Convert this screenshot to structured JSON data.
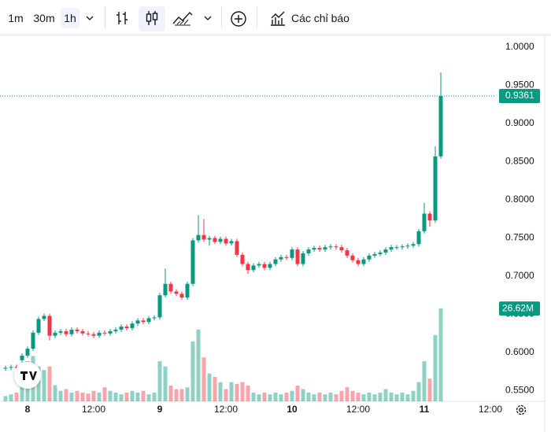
{
  "toolbar": {
    "intervals": [
      "1m",
      "30m",
      "1h"
    ],
    "indicators": "Các chỉ báo"
  },
  "chart_data": {
    "type": "candlestick",
    "x": [
      -4,
      -3,
      -2,
      -1,
      0,
      1,
      2,
      3,
      4,
      5,
      6,
      7,
      8,
      9,
      10,
      11,
      12,
      13,
      14,
      15,
      16,
      17,
      18,
      19,
      20,
      21,
      22,
      23,
      24,
      25,
      26,
      27,
      28,
      29,
      30,
      31,
      32,
      33,
      34,
      35,
      36,
      37,
      38,
      39,
      40,
      41,
      42,
      43,
      44,
      45,
      46,
      47,
      48,
      49,
      50,
      51,
      52,
      53,
      54,
      55,
      56,
      57,
      58,
      59,
      60,
      61,
      62,
      63,
      64,
      65,
      66,
      67,
      68,
      69,
      70,
      71,
      72,
      73,
      74,
      75
    ],
    "open": [
      0.579,
      0.58,
      0.581,
      0.59,
      0.596,
      0.605,
      0.626,
      0.644,
      0.648,
      0.622,
      0.626,
      0.628,
      0.624,
      0.63,
      0.628,
      0.625,
      0.624,
      0.622,
      0.626,
      0.625,
      0.628,
      0.63,
      0.634,
      0.632,
      0.638,
      0.642,
      0.64,
      0.645,
      0.646,
      0.675,
      0.69,
      0.68,
      0.677,
      0.672,
      0.69,
      0.747,
      0.754,
      0.748,
      0.75,
      0.745,
      0.749,
      0.743,
      0.746,
      0.728,
      0.716,
      0.708,
      0.714,
      0.716,
      0.711,
      0.716,
      0.722,
      0.725,
      0.724,
      0.735,
      0.716,
      0.73,
      0.735,
      0.737,
      0.735,
      0.738,
      0.739,
      0.738,
      0.734,
      0.727,
      0.721,
      0.716,
      0.722,
      0.727,
      0.729,
      0.731,
      0.735,
      0.738,
      0.738,
      0.739,
      0.74,
      0.742,
      0.759,
      0.782,
      0.773,
      0.857
    ],
    "high": [
      0.583,
      0.584,
      0.584,
      0.599,
      0.608,
      0.629,
      0.647,
      0.651,
      0.651,
      0.629,
      0.631,
      0.631,
      0.633,
      0.633,
      0.631,
      0.628,
      0.627,
      0.629,
      0.629,
      0.631,
      0.633,
      0.637,
      0.637,
      0.641,
      0.645,
      0.645,
      0.648,
      0.649,
      0.678,
      0.71,
      0.693,
      0.683,
      0.68,
      0.693,
      0.75,
      0.78,
      0.775,
      0.753,
      0.753,
      0.752,
      0.752,
      0.749,
      0.749,
      0.731,
      0.719,
      0.717,
      0.719,
      0.719,
      0.719,
      0.725,
      0.728,
      0.728,
      0.738,
      0.738,
      0.733,
      0.738,
      0.74,
      0.74,
      0.741,
      0.742,
      0.742,
      0.741,
      0.737,
      0.73,
      0.724,
      0.725,
      0.73,
      0.732,
      0.734,
      0.738,
      0.741,
      0.741,
      0.742,
      0.743,
      0.745,
      0.762,
      0.796,
      0.785,
      0.87,
      0.967
    ],
    "low": [
      0.576,
      0.577,
      0.577,
      0.587,
      0.593,
      0.602,
      0.623,
      0.641,
      0.616,
      0.619,
      0.623,
      0.621,
      0.621,
      0.625,
      0.622,
      0.621,
      0.619,
      0.619,
      0.622,
      0.622,
      0.625,
      0.627,
      0.629,
      0.629,
      0.635,
      0.637,
      0.637,
      0.642,
      0.643,
      0.672,
      0.677,
      0.674,
      0.669,
      0.669,
      0.687,
      0.744,
      0.745,
      0.74,
      0.742,
      0.742,
      0.74,
      0.74,
      0.725,
      0.713,
      0.703,
      0.705,
      0.711,
      0.708,
      0.708,
      0.713,
      0.719,
      0.721,
      0.721,
      0.713,
      0.713,
      0.727,
      0.732,
      0.732,
      0.732,
      0.735,
      0.735,
      0.731,
      0.724,
      0.718,
      0.713,
      0.713,
      0.719,
      0.724,
      0.726,
      0.728,
      0.732,
      0.735,
      0.735,
      0.736,
      0.737,
      0.739,
      0.756,
      0.765,
      0.77,
      0.854
    ],
    "close": [
      0.58,
      0.581,
      0.58,
      0.596,
      0.605,
      0.626,
      0.644,
      0.648,
      0.622,
      0.626,
      0.628,
      0.624,
      0.63,
      0.628,
      0.625,
      0.624,
      0.622,
      0.626,
      0.625,
      0.628,
      0.63,
      0.634,
      0.632,
      0.638,
      0.642,
      0.64,
      0.645,
      0.646,
      0.675,
      0.69,
      0.68,
      0.677,
      0.672,
      0.69,
      0.747,
      0.754,
      0.748,
      0.75,
      0.745,
      0.749,
      0.743,
      0.746,
      0.728,
      0.716,
      0.708,
      0.714,
      0.716,
      0.711,
      0.716,
      0.722,
      0.725,
      0.724,
      0.735,
      0.716,
      0.73,
      0.735,
      0.737,
      0.735,
      0.738,
      0.739,
      0.738,
      0.734,
      0.727,
      0.721,
      0.716,
      0.722,
      0.727,
      0.729,
      0.731,
      0.735,
      0.738,
      0.738,
      0.739,
      0.74,
      0.742,
      0.759,
      0.782,
      0.773,
      0.857,
      0.9361
    ],
    "last_price_label": "0.9361",
    "volume": [
      1.5,
      2,
      2.5,
      8,
      11.5,
      13,
      10,
      9,
      10,
      4.6,
      3,
      3.5,
      2.5,
      3,
      2.5,
      2.2,
      3,
      2.5,
      4,
      3,
      2.5,
      2,
      2.5,
      3,
      2.5,
      3,
      2,
      2.5,
      11.5,
      10,
      4.5,
      3.5,
      3.5,
      4,
      17.2,
      20.6,
      12.6,
      8,
      7,
      5.5,
      3.5,
      5.5,
      5,
      5.5,
      4.5,
      2.5,
      2,
      2.5,
      2,
      2.5,
      2,
      2.5,
      3,
      4.5,
      3.5,
      2.5,
      2,
      2.5,
      2,
      2.5,
      2,
      3,
      4,
      3,
      2.5,
      2,
      2.5,
      2,
      2.5,
      3.5,
      2.5,
      2,
      2.5,
      2,
      3,
      5.5,
      11.5,
      6.5,
      19,
      26.62
    ],
    "last_volume_label": "26.62M",
    "volume_ylim": [
      0,
      105
    ],
    "xlim": [
      -5,
      85
    ],
    "xticks": [
      {
        "value": 0,
        "label": "8"
      },
      {
        "value": 12,
        "label": "12:00"
      },
      {
        "value": 24,
        "label": "9"
      },
      {
        "value": 36,
        "label": "12:00"
      },
      {
        "value": 48,
        "label": "10"
      },
      {
        "value": 60,
        "label": "12:00"
      },
      {
        "value": 72,
        "label": "11"
      },
      {
        "value": 84,
        "label": "12:00"
      }
    ],
    "ylim": [
      0.5361,
      1.0155
    ],
    "yticks": [
      {
        "value": 0.55,
        "label": "0.5500"
      },
      {
        "value": 0.6,
        "label": "0.6000"
      },
      {
        "value": 0.65,
        "label": "0.6500"
      },
      {
        "value": 0.7,
        "label": "0.7000"
      },
      {
        "value": 0.75,
        "label": "0.7500"
      },
      {
        "value": 0.8,
        "label": "0.8000"
      },
      {
        "value": 0.85,
        "label": "0.8500"
      },
      {
        "value": 0.9,
        "label": "0.9000"
      },
      {
        "value": 0.95,
        "label": "0.9500"
      },
      {
        "value": 1.0,
        "label": "1.0000"
      }
    ],
    "grid": false,
    "up_color": "#089981",
    "down_color": "#f23645",
    "up_volume_color": "rgba(8,153,129,0.45)",
    "down_volume_color": "rgba(242,54,69,0.45)"
  }
}
